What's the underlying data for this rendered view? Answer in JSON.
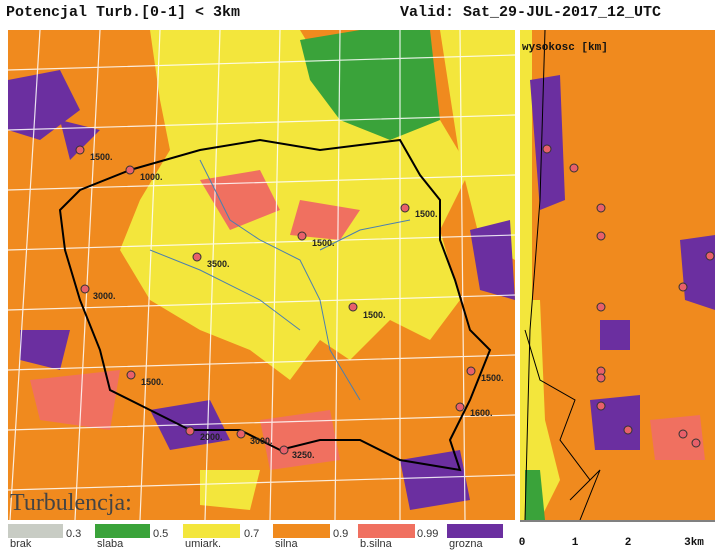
{
  "header": {
    "title": "Potencjal Turb.[0-1] < 3km",
    "valid": "Valid: Sat_29-JUL-2017_12_UTC"
  },
  "map": {
    "stations": [
      "1500.",
      "1000.",
      "1500.",
      "1500.",
      "3500.",
      "3000.",
      "1500.",
      "1500.",
      "1500.",
      "1600.",
      "2000.",
      "3000.",
      "3250."
    ]
  },
  "legend": {
    "title": "Turbulencja:",
    "items": [
      {
        "name": "brak",
        "threshold": "0.3"
      },
      {
        "name": "slaba",
        "threshold": "0.5"
      },
      {
        "name": "umiark.",
        "threshold": "0.7"
      },
      {
        "name": "silna",
        "threshold": "0.9"
      },
      {
        "name": "b.silna",
        "threshold": "0.99"
      },
      {
        "name": "grozna"
      }
    ]
  },
  "profile": {
    "title": "wysokosc [km]",
    "axis_labels": [
      "0",
      "1",
      "2",
      "3km"
    ]
  }
}
